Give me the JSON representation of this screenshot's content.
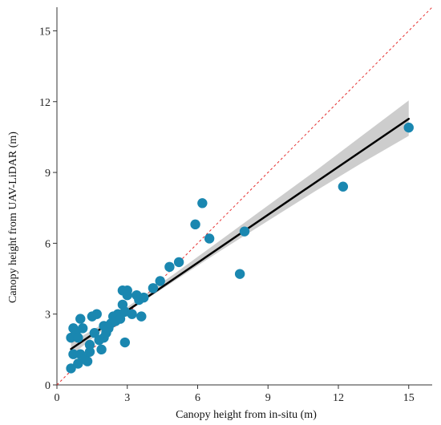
{
  "chart_data": {
    "type": "scatter",
    "title": "",
    "xlabel": "Canopy height from in-situ (m)",
    "ylabel": "Canopy height from UAV-LiDAR (m)",
    "xlim": [
      0,
      16
    ],
    "ylim": [
      0,
      16
    ],
    "xticks": [
      0,
      3,
      6,
      9,
      12,
      15
    ],
    "yticks": [
      0,
      3,
      6,
      9,
      12,
      15
    ],
    "grid": false,
    "colors": {
      "points": "#1a87b0",
      "fit_line": "#000000",
      "confidence_band": "#c8c8c8",
      "one_to_one": "#e53030"
    },
    "one_to_one_line": true,
    "fit_line": {
      "x_start": 0.6,
      "y_start": 1.52,
      "x_end": 15,
      "y_end": 11.27
    },
    "confidence_band": [
      {
        "x": 0.6,
        "lower": 1.25,
        "upper": 1.8
      },
      {
        "x": 2.0,
        "lower": 2.35,
        "upper": 2.6
      },
      {
        "x": 3.0,
        "lower": 3.1,
        "upper": 3.3
      },
      {
        "x": 5.0,
        "lower": 4.4,
        "upper": 4.7
      },
      {
        "x": 7.0,
        "lower": 5.7,
        "upper": 6.15
      },
      {
        "x": 9.0,
        "lower": 6.95,
        "upper": 7.6
      },
      {
        "x": 11.0,
        "lower": 8.2,
        "upper": 9.05
      },
      {
        "x": 13.0,
        "lower": 9.4,
        "upper": 10.55
      },
      {
        "x": 15.0,
        "lower": 10.55,
        "upper": 12.05
      }
    ],
    "series": [
      {
        "points": [
          {
            "x": 0.6,
            "y": 0.7
          },
          {
            "x": 0.7,
            "y": 1.3
          },
          {
            "x": 0.6,
            "y": 2.0
          },
          {
            "x": 0.7,
            "y": 2.4
          },
          {
            "x": 0.8,
            "y": 2.2
          },
          {
            "x": 0.9,
            "y": 2.0
          },
          {
            "x": 0.9,
            "y": 0.9
          },
          {
            "x": 1.0,
            "y": 1.3
          },
          {
            "x": 1.0,
            "y": 2.8
          },
          {
            "x": 1.1,
            "y": 2.4
          },
          {
            "x": 1.2,
            "y": 1.1
          },
          {
            "x": 1.3,
            "y": 1.0
          },
          {
            "x": 1.4,
            "y": 1.4
          },
          {
            "x": 1.4,
            "y": 1.7
          },
          {
            "x": 1.5,
            "y": 2.9
          },
          {
            "x": 1.6,
            "y": 2.2
          },
          {
            "x": 1.7,
            "y": 3.0
          },
          {
            "x": 1.8,
            "y": 1.9
          },
          {
            "x": 1.9,
            "y": 1.5
          },
          {
            "x": 2.0,
            "y": 2.0
          },
          {
            "x": 2.0,
            "y": 2.5
          },
          {
            "x": 2.1,
            "y": 2.2
          },
          {
            "x": 2.2,
            "y": 2.4
          },
          {
            "x": 2.3,
            "y": 2.6
          },
          {
            "x": 2.4,
            "y": 2.9
          },
          {
            "x": 2.5,
            "y": 2.7
          },
          {
            "x": 2.6,
            "y": 3.0
          },
          {
            "x": 2.7,
            "y": 2.8
          },
          {
            "x": 2.8,
            "y": 3.4
          },
          {
            "x": 2.8,
            "y": 4.0
          },
          {
            "x": 2.9,
            "y": 3.1
          },
          {
            "x": 3.0,
            "y": 3.8
          },
          {
            "x": 3.0,
            "y": 4.0
          },
          {
            "x": 2.9,
            "y": 1.8
          },
          {
            "x": 3.2,
            "y": 3.0
          },
          {
            "x": 3.4,
            "y": 3.8
          },
          {
            "x": 3.5,
            "y": 3.6
          },
          {
            "x": 3.6,
            "y": 2.9
          },
          {
            "x": 3.7,
            "y": 3.7
          },
          {
            "x": 4.1,
            "y": 4.1
          },
          {
            "x": 4.4,
            "y": 4.4
          },
          {
            "x": 4.8,
            "y": 5.0
          },
          {
            "x": 5.2,
            "y": 5.2
          },
          {
            "x": 5.9,
            "y": 6.8
          },
          {
            "x": 6.2,
            "y": 7.7
          },
          {
            "x": 6.5,
            "y": 6.2
          },
          {
            "x": 7.8,
            "y": 4.7
          },
          {
            "x": 8.0,
            "y": 6.5
          },
          {
            "x": 12.2,
            "y": 8.4
          },
          {
            "x": 15.0,
            "y": 10.9
          }
        ]
      }
    ]
  }
}
